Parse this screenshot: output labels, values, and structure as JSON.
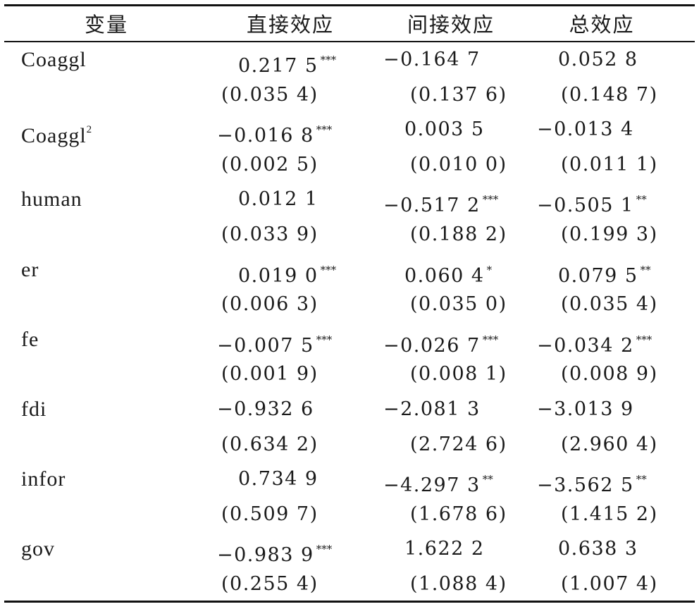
{
  "header": {
    "variable": "变量",
    "direct": "直接效应",
    "indirect": "间接效应",
    "total": "总效应"
  },
  "rows": [
    {
      "var": "Coaggl",
      "var_sup": "",
      "direct": "0.217 5",
      "direct_stars": "***",
      "indirect": "−0.164 7",
      "indirect_stars": "",
      "total": "0.052 8",
      "total_stars": "",
      "direct_se": "(0.035 4)",
      "indirect_se": "(0.137 6)",
      "total_se": "(0.148 7)"
    },
    {
      "var": "Coaggl",
      "var_sup": "2",
      "direct": "−0.016 8",
      "direct_stars": "***",
      "indirect": "0.003 5",
      "indirect_stars": "",
      "total": "−0.013 4",
      "total_stars": "",
      "direct_se": "(0.002 5)",
      "indirect_se": "(0.010 0)",
      "total_se": "(0.011 1)"
    },
    {
      "var": "human",
      "var_sup": "",
      "direct": "0.012 1",
      "direct_stars": "",
      "indirect": "−0.517 2",
      "indirect_stars": "***",
      "total": "−0.505 1",
      "total_stars": "**",
      "direct_se": "(0.033 9)",
      "indirect_se": "(0.188 2)",
      "total_se": "(0.199 3)"
    },
    {
      "var": "er",
      "var_sup": "",
      "direct": "0.019 0",
      "direct_stars": "***",
      "indirect": "0.060 4",
      "indirect_stars": "*",
      "total": "0.079 5",
      "total_stars": "**",
      "direct_se": "(0.006 3)",
      "indirect_se": "(0.035 0)",
      "total_se": "(0.035 4)"
    },
    {
      "var": "fe",
      "var_sup": "",
      "direct": "−0.007 5",
      "direct_stars": "***",
      "indirect": "−0.026 7",
      "indirect_stars": "***",
      "total": "−0.034 2",
      "total_stars": "***",
      "direct_se": "(0.001 9)",
      "indirect_se": "(0.008 1)",
      "total_se": "(0.008 9)"
    },
    {
      "var": "fdi",
      "var_sup": "",
      "direct": "−0.932 6",
      "direct_stars": "",
      "indirect": "−2.081 3",
      "indirect_stars": "",
      "total": "−3.013 9",
      "total_stars": "",
      "direct_se": "(0.634 2)",
      "indirect_se": "(2.724 6)",
      "total_se": "(2.960 4)"
    },
    {
      "var": "infor",
      "var_sup": "",
      "direct": "0.734 9",
      "direct_stars": "",
      "indirect": "−4.297 3",
      "indirect_stars": "**",
      "total": "−3.562 5",
      "total_stars": "**",
      "direct_se": "(0.509 7)",
      "indirect_se": "(1.678 6)",
      "total_se": "(1.415 2)"
    },
    {
      "var": "gov",
      "var_sup": "",
      "direct": "−0.983 9",
      "direct_stars": "***",
      "indirect": "1.622 2",
      "indirect_stars": "",
      "total": "0.638 3",
      "total_stars": "",
      "direct_se": "(0.255 4)",
      "indirect_se": "(1.088 4)",
      "total_se": "(1.007 4)"
    }
  ]
}
